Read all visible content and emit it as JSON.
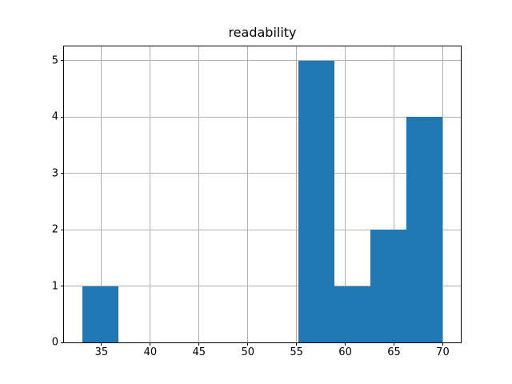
{
  "chart_data": {
    "type": "histogram",
    "title": "readability",
    "xlabel": "",
    "ylabel": "",
    "bin_edges": [
      33.0,
      36.7,
      40.4,
      44.1,
      47.8,
      51.5,
      55.2,
      58.9,
      62.6,
      66.3,
      70.0
    ],
    "counts": [
      1,
      0,
      0,
      0,
      0,
      0,
      5,
      1,
      2,
      4
    ],
    "xticks": [
      35,
      40,
      45,
      50,
      55,
      60,
      65,
      70
    ],
    "yticks": [
      0,
      1,
      2,
      3,
      4,
      5
    ],
    "xlim": [
      31.15,
      71.85
    ],
    "ylim": [
      0,
      5.25
    ],
    "grid": true,
    "legend": null,
    "bar_color": "#1f77b4",
    "grid_color": "#b0b0b0",
    "spine_color": "#000000",
    "background_color": "#ffffff"
  }
}
